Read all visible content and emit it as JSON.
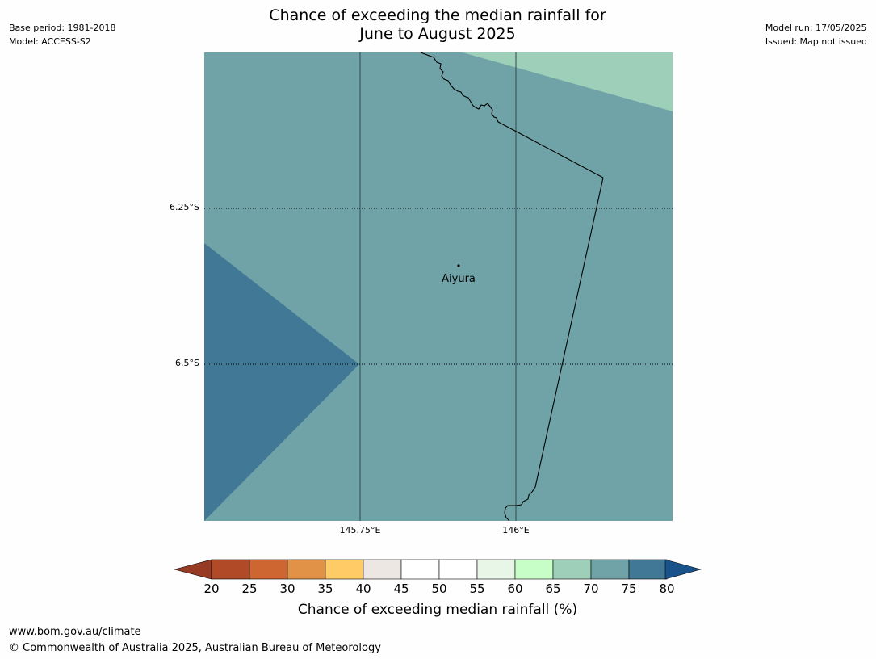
{
  "header": {
    "title_line1": "Chance of exceeding the median rainfall for",
    "title_line2": "June to August 2025",
    "base_period": "Base period: 1981-2018",
    "model": "Model: ACCESS-S2",
    "model_run": "Model run: 17/05/2025",
    "issued": "Issued: Map not issued"
  },
  "map": {
    "location_label": "Aiyura",
    "lat_labels": [
      "6.25°S",
      "6.5°S"
    ],
    "lon_labels": [
      "145.75°E",
      "146°E"
    ],
    "region_colors": {
      "base": "#6fa3a8",
      "top_right": "#9ecfb8",
      "left_wedge": "#417896"
    }
  },
  "colorbar": {
    "ticks": [
      "20",
      "25",
      "30",
      "35",
      "40",
      "45",
      "50",
      "55",
      "60",
      "65",
      "70",
      "75",
      "80"
    ],
    "colors": [
      "#b04a27",
      "#cd6630",
      "#e19246",
      "#fecb66",
      "#ede7e3",
      "#ffffff",
      "#ffffff",
      "#e8f6e8",
      "#c7fec7",
      "#9ecfb8",
      "#6fa3a8",
      "#417896"
    ],
    "under_color": "#983b24",
    "over_color": "#18538c",
    "label": "Chance of exceeding median rainfall (%)"
  },
  "footer": {
    "url": "www.bom.gov.au/climate",
    "copyright": "© Commonwealth of Australia 2025, Australian Bureau of Meteorology"
  }
}
